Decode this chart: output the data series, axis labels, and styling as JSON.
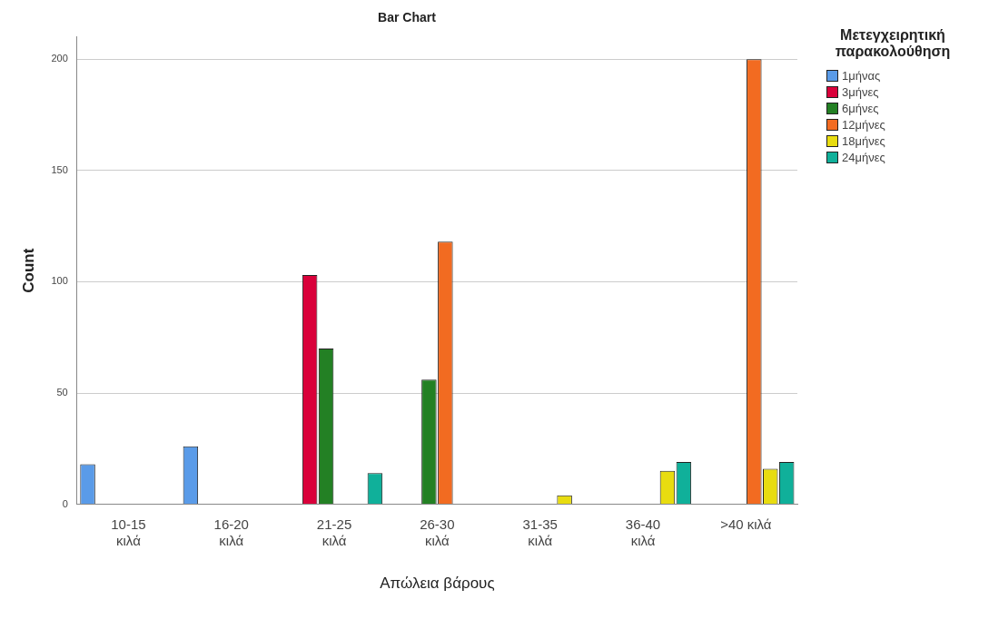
{
  "chart_data": {
    "type": "bar",
    "title": "Bar Chart",
    "xlabel": "Απώλεια βάρους",
    "ylabel": "Count",
    "legend_title": "Μετεγχειρητική παρακολούθηση",
    "legend": "right",
    "grid": "y",
    "categories": [
      "10-15 κιλά",
      "16-20 κιλά",
      "21-25 κιλά",
      "26-30 κιλά",
      "31-35 κιλά",
      "36-40 κιλά",
      ">40 κιλά"
    ],
    "ylim": [
      0,
      210
    ],
    "yticks": [
      0,
      50,
      100,
      150,
      200
    ],
    "series": [
      {
        "name": "1μήνας",
        "color": "#5a9be8",
        "values": [
          18,
          26,
          null,
          null,
          null,
          null,
          null
        ]
      },
      {
        "name": "3μήνες",
        "color": "#d9003a",
        "values": [
          null,
          null,
          103,
          null,
          null,
          null,
          null
        ]
      },
      {
        "name": "6μήνες",
        "color": "#238024",
        "values": [
          null,
          null,
          70,
          56,
          null,
          null,
          null
        ]
      },
      {
        "name": "12μήνες",
        "color": "#f26b21",
        "values": [
          null,
          null,
          null,
          118,
          null,
          null,
          200
        ]
      },
      {
        "name": "18μήνες",
        "color": "#e8dc10",
        "values": [
          null,
          null,
          null,
          null,
          4,
          15,
          16
        ]
      },
      {
        "name": "24μήνες",
        "color": "#10b09a",
        "values": [
          null,
          null,
          14,
          null,
          null,
          19,
          19
        ]
      }
    ]
  }
}
